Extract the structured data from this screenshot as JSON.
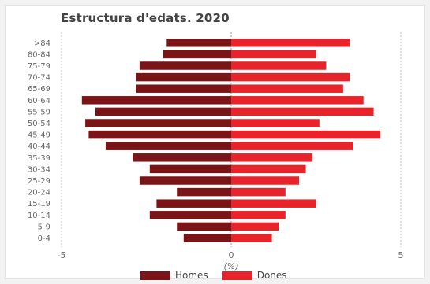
{
  "chart_data": {
    "type": "bar",
    "title": "Estructura d'edats. 2020",
    "xlabel": "(%)",
    "ylabel": "",
    "xlim": [
      -5,
      5
    ],
    "xticks": [
      "-5",
      "0",
      "5"
    ],
    "categories": [
      ">84",
      "80-84",
      "75-79",
      "70-74",
      "65-69",
      "60-64",
      "55-59",
      "50-54",
      "45-49",
      "40-44",
      "35-39",
      "30-34",
      "25-29",
      "20-24",
      "15-19",
      "10-14",
      "5-9",
      "0-4"
    ],
    "series": [
      {
        "name": "Homes",
        "color": "#7b1416",
        "values": [
          -1.9,
          -2.0,
          -2.7,
          -2.8,
          -2.8,
          -4.4,
          -4.0,
          -4.3,
          -4.2,
          -3.7,
          -2.9,
          -2.4,
          -2.7,
          -1.6,
          -2.2,
          -2.4,
          -1.6,
          -1.4
        ]
      },
      {
        "name": "Dones",
        "color": "#e8232a",
        "values": [
          3.5,
          2.5,
          2.8,
          3.5,
          3.3,
          3.9,
          4.2,
          2.6,
          4.4,
          3.6,
          2.4,
          2.2,
          2.0,
          1.6,
          2.5,
          1.6,
          1.4,
          1.2
        ]
      }
    ],
    "grid": false,
    "legend": "bottom"
  }
}
